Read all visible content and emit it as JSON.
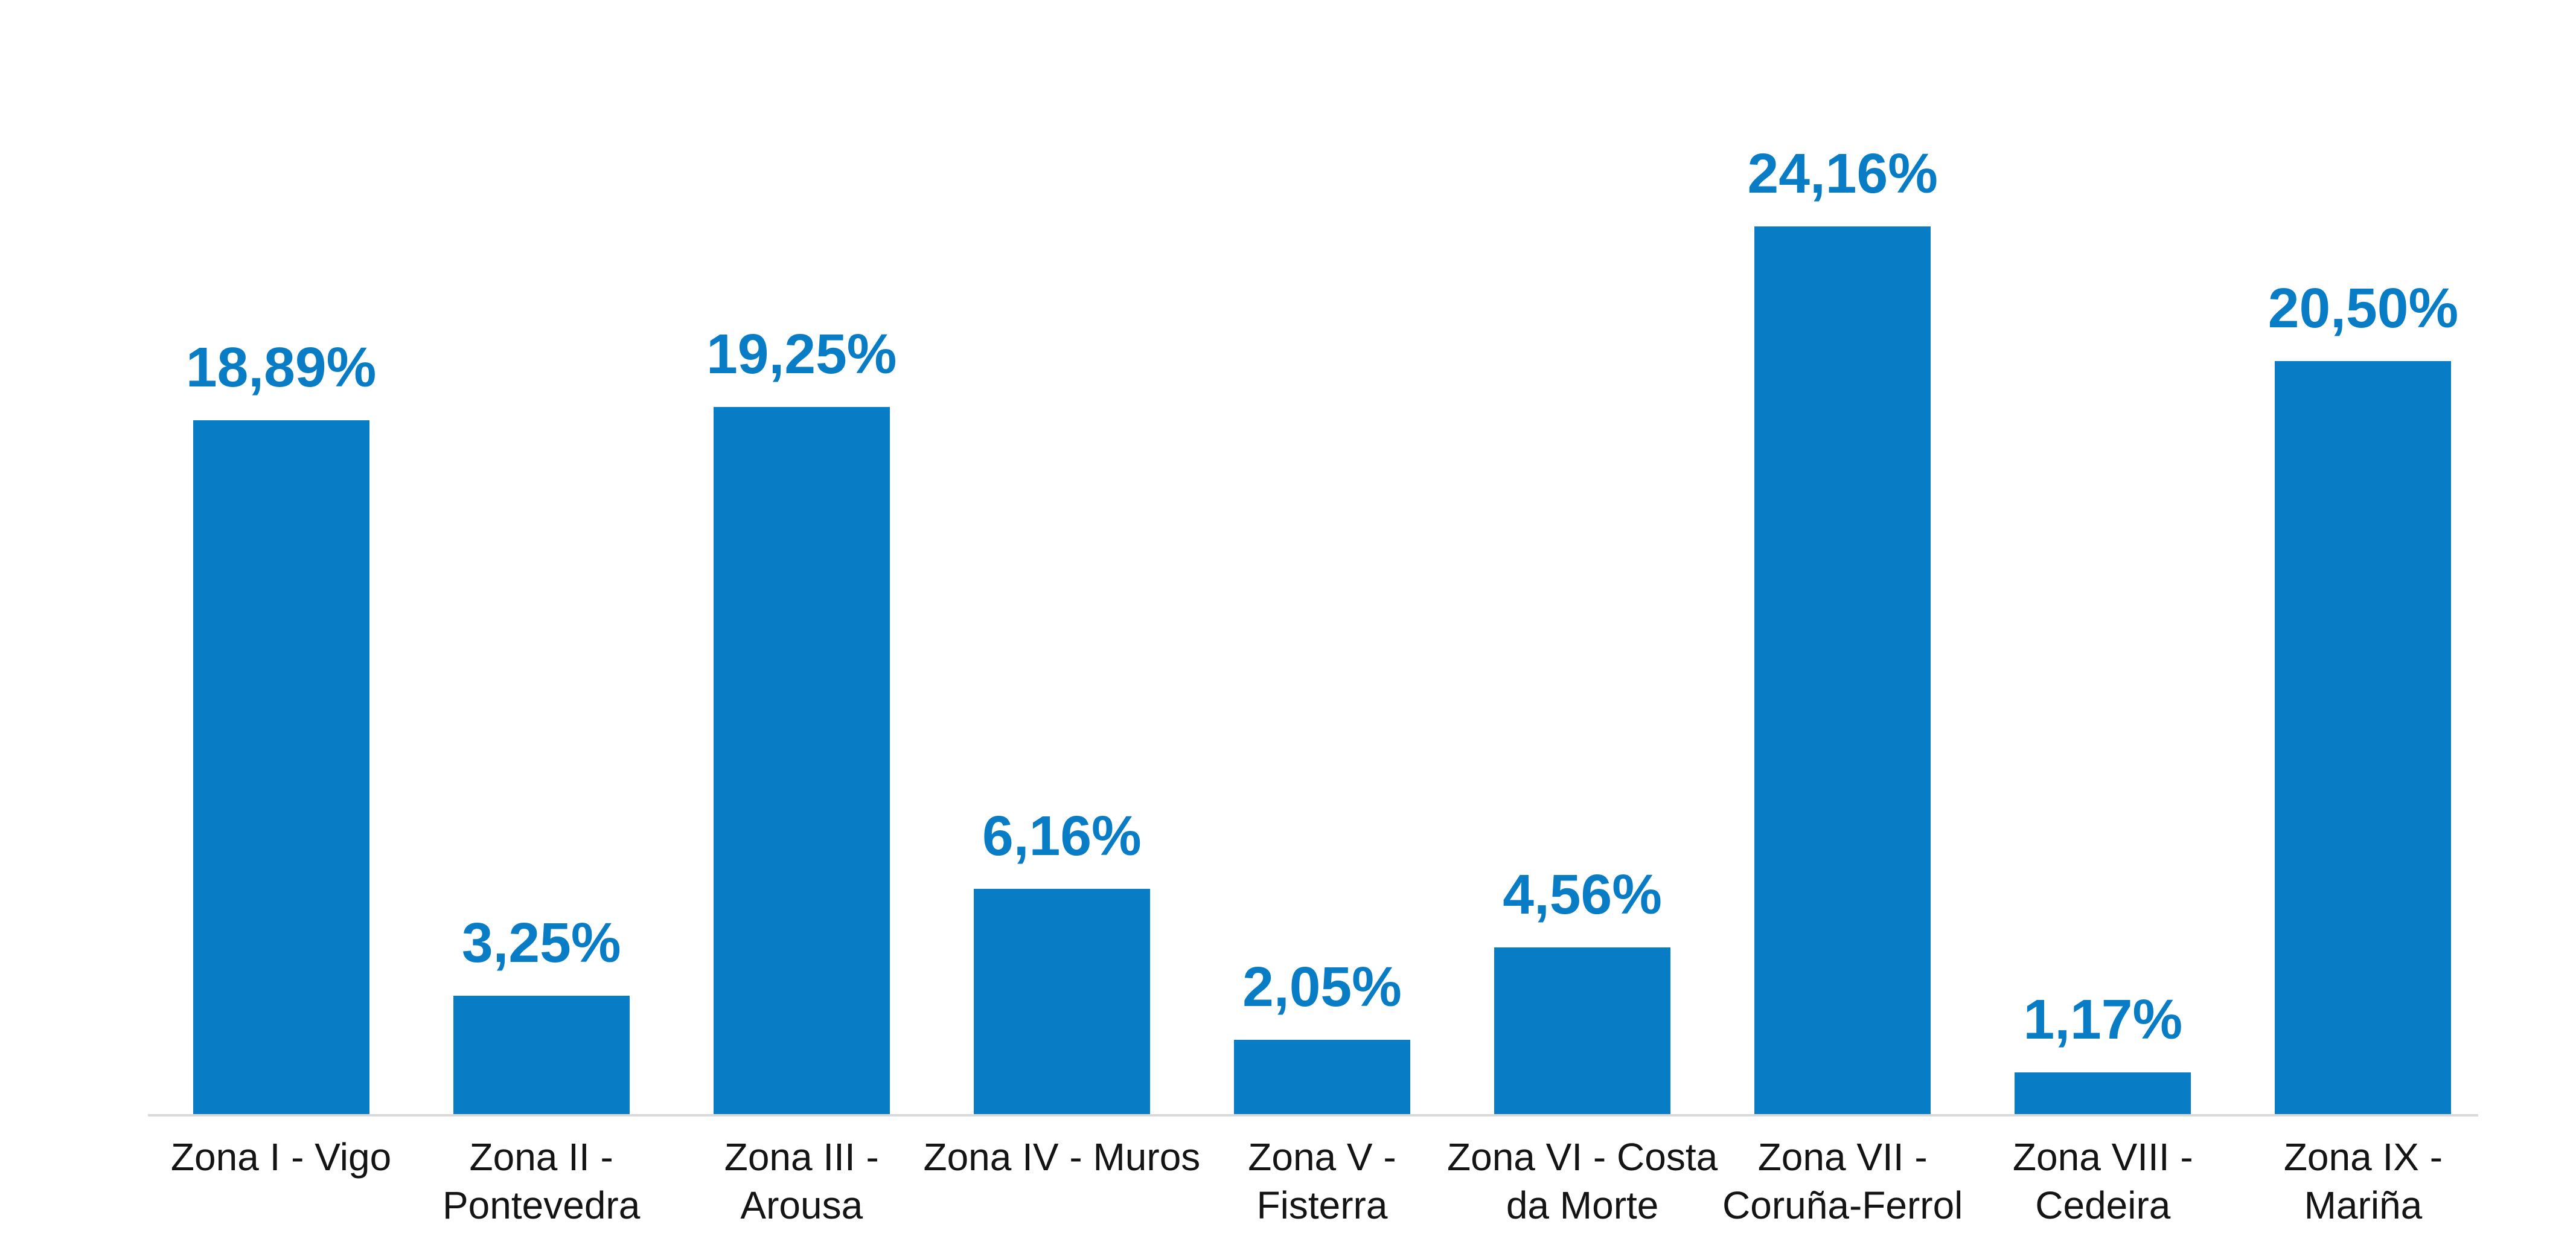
{
  "chart_data": {
    "type": "bar",
    "title": "",
    "xlabel": "",
    "ylabel": "",
    "categories": [
      "Zona I - Vigo",
      "Zona II - Pontevedra",
      "Zona III - Arousa",
      "Zona IV - Muros",
      "Zona V - Fisterra",
      "Zona VI - Costa da Morte",
      "Zona VII - Coruña-Ferrol",
      "Zona VIII - Cedeira",
      "Zona IX - Mariña"
    ],
    "tick_label_lines": [
      "Zona I - Vigo",
      "Zona II -\nPontevedra",
      "Zona III -\nArousa",
      "Zona IV - Muros",
      "Zona V -\nFisterra",
      "Zona VI - Costa\nda Morte",
      "Zona VII -\nCoruña-Ferrol",
      "Zona VIII -\nCedeira",
      "Zona IX -\nMariña"
    ],
    "values": [
      18.89,
      3.25,
      19.25,
      6.16,
      2.05,
      4.56,
      24.16,
      1.17,
      20.5
    ],
    "value_labels": [
      "18,89%",
      "3,25%",
      "19,25%",
      "6,16%",
      "2,05%",
      "4,56%",
      "24,16%",
      "1,17%",
      "20,50%"
    ],
    "decimal_separator": ",",
    "unit": "%",
    "ylim": [
      0,
      24.16
    ],
    "grid": false,
    "legend": "none",
    "data_labels": "above-bars",
    "bar_color": "#087dc5",
    "label_color": "#087dc5",
    "tick_color": "#141414",
    "axis_line_color": "#d9d9d9",
    "background_color": "#ffffff"
  }
}
